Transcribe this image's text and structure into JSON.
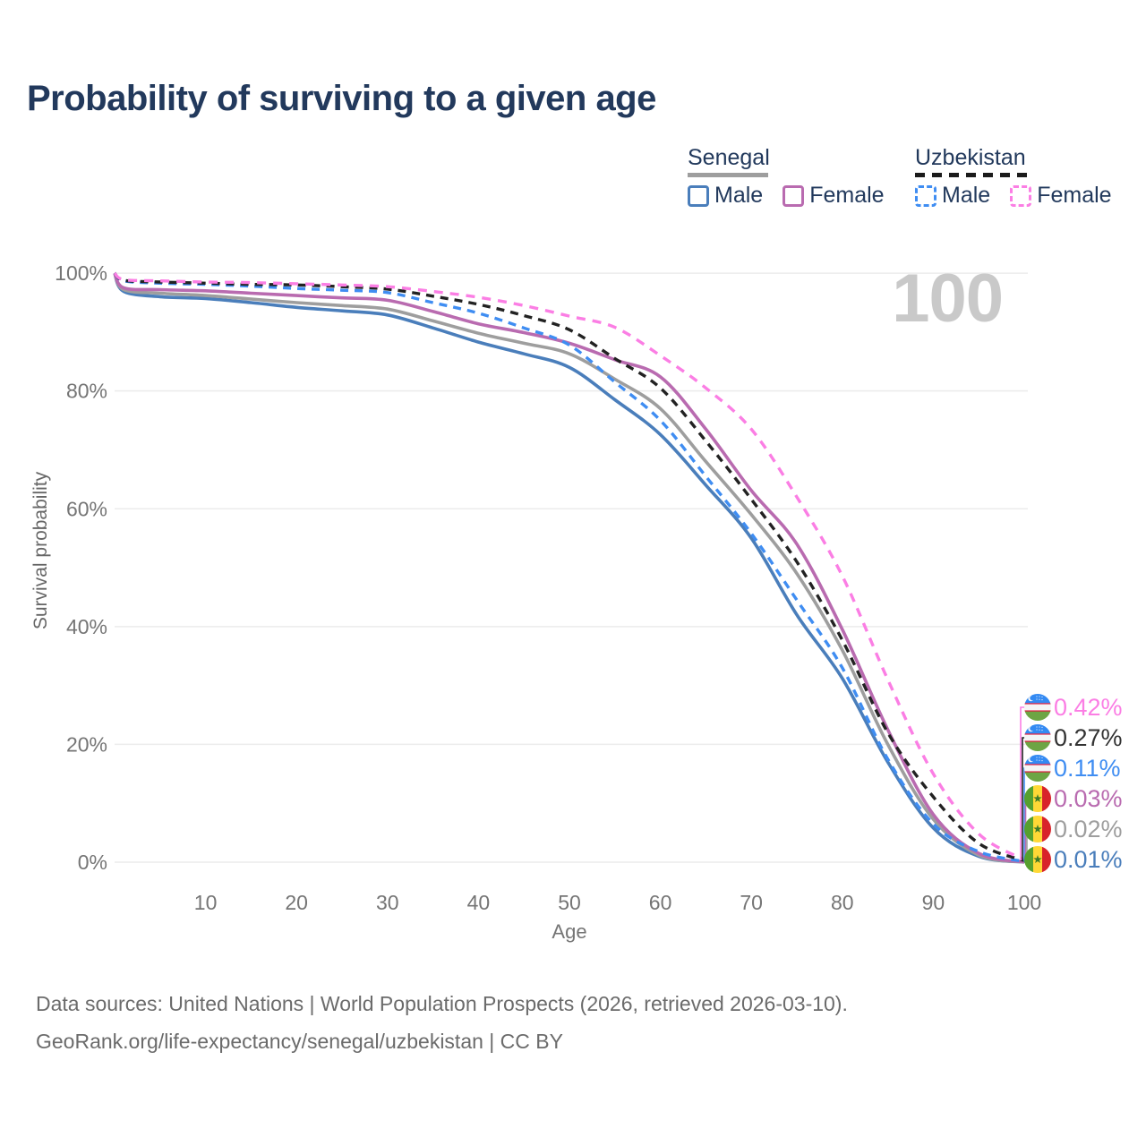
{
  "title": "Probability of surviving to a given age",
  "watermark": "100",
  "legend": {
    "groups": [
      {
        "country": "Senegal",
        "line_style": "solid",
        "line_color": "#9e9e9e",
        "items": [
          {
            "label": "Male",
            "color": "#4a7ebb"
          },
          {
            "label": "Female",
            "color": "#b96bb0"
          }
        ]
      },
      {
        "country": "Uzbekistan",
        "line_style": "dashed",
        "line_color": "#1b1b1b",
        "items": [
          {
            "label": "Male",
            "color": "#3f8df2"
          },
          {
            "label": "Female",
            "color": "#fb7ee4"
          }
        ]
      }
    ]
  },
  "end_labels": [
    {
      "value": "0.42%",
      "series": "uzbekistan-female",
      "color": "#fb7ee4",
      "flag": "uzbekistan-flag"
    },
    {
      "value": "0.27%",
      "series": "uzbekistan-all",
      "color": "#333333",
      "flag": "uzbekistan-flag"
    },
    {
      "value": "0.11%",
      "series": "uzbekistan-male",
      "color": "#3f8df2",
      "flag": "uzbekistan-flag"
    },
    {
      "value": "0.03%",
      "series": "senegal-female",
      "color": "#b96bb0",
      "flag": "senegal-flag"
    },
    {
      "value": "0.02%",
      "series": "senegal-all",
      "color": "#9e9e9e",
      "flag": "senegal-flag"
    },
    {
      "value": "0.01%",
      "series": "senegal-male",
      "color": "#4a7ebb",
      "flag": "senegal-flag"
    }
  ],
  "footer": {
    "line1": "Data sources: United Nations | World Population Prospects (2026, retrieved 2026-03-10).",
    "line2": "GeoRank.org/life-expectancy/senegal/uzbekistan | CC BY"
  },
  "chart_data": {
    "type": "line",
    "x_label": "Age",
    "y_label": "Survival probability",
    "x_range": [
      0,
      100
    ],
    "y_range": [
      0,
      100
    ],
    "grid": "horizontal",
    "x_ticks": [
      {
        "label": "10",
        "value": 10
      },
      {
        "label": "20",
        "value": 20
      },
      {
        "label": "30",
        "value": 30
      },
      {
        "label": "40",
        "value": 40
      },
      {
        "label": "50",
        "value": 50
      },
      {
        "label": "60",
        "value": 60
      },
      {
        "label": "70",
        "value": 70
      },
      {
        "label": "80",
        "value": 80
      },
      {
        "label": "90",
        "value": 90
      },
      {
        "label": "100",
        "value": 100
      }
    ],
    "y_ticks": [
      {
        "label": "0%",
        "value": 0
      },
      {
        "label": "20%",
        "value": 20
      },
      {
        "label": "40%",
        "value": 40
      },
      {
        "label": "60%",
        "value": 60
      },
      {
        "label": "80%",
        "value": 80
      },
      {
        "label": "100%",
        "value": 100
      }
    ],
    "series": [
      {
        "id": "senegal-male",
        "name": "Senegal Male",
        "country": "Senegal",
        "sex": "male",
        "style": "solid",
        "color": "#4a7ebb",
        "dash": null,
        "points": [
          [
            0,
            100
          ],
          [
            1,
            96.9
          ],
          [
            5,
            96.0
          ],
          [
            10,
            95.7
          ],
          [
            15,
            95.0
          ],
          [
            20,
            94.2
          ],
          [
            25,
            93.6
          ],
          [
            30,
            92.9
          ],
          [
            35,
            90.7
          ],
          [
            40,
            88.3
          ],
          [
            45,
            86.3
          ],
          [
            50,
            84.0
          ],
          [
            55,
            78.5
          ],
          [
            60,
            72.6
          ],
          [
            65,
            64.0
          ],
          [
            70,
            55.0
          ],
          [
            75,
            42.0
          ],
          [
            80,
            31.2
          ],
          [
            85,
            17.0
          ],
          [
            90,
            5.8
          ],
          [
            95,
            1.0
          ],
          [
            100,
            0.01
          ]
        ]
      },
      {
        "id": "senegal-all",
        "name": "Senegal Both sexes",
        "country": "Senegal",
        "sex": "all",
        "style": "solid",
        "color": "#9e9e9e",
        "dash": null,
        "points": [
          [
            0,
            100
          ],
          [
            1,
            97.2
          ],
          [
            5,
            96.6
          ],
          [
            10,
            96.2
          ],
          [
            15,
            95.6
          ],
          [
            20,
            95.0
          ],
          [
            25,
            94.5
          ],
          [
            30,
            93.9
          ],
          [
            35,
            91.9
          ],
          [
            40,
            89.8
          ],
          [
            45,
            88.1
          ],
          [
            50,
            86.3
          ],
          [
            55,
            82.0
          ],
          [
            60,
            77.0
          ],
          [
            65,
            68.0
          ],
          [
            70,
            59.0
          ],
          [
            75,
            49.0
          ],
          [
            80,
            36.0
          ],
          [
            85,
            20.0
          ],
          [
            90,
            7.3
          ],
          [
            95,
            1.2
          ],
          [
            100,
            0.02
          ]
        ]
      },
      {
        "id": "senegal-female",
        "name": "Senegal Female",
        "country": "Senegal",
        "sex": "female",
        "style": "solid",
        "color": "#b96bb0",
        "dash": null,
        "points": [
          [
            0,
            100
          ],
          [
            1,
            97.5
          ],
          [
            5,
            97.2
          ],
          [
            10,
            97.0
          ],
          [
            15,
            96.6
          ],
          [
            20,
            96.2
          ],
          [
            25,
            95.8
          ],
          [
            30,
            95.4
          ],
          [
            35,
            93.5
          ],
          [
            40,
            91.4
          ],
          [
            45,
            89.9
          ],
          [
            50,
            88.1
          ],
          [
            55,
            85.3
          ],
          [
            60,
            82.4
          ],
          [
            65,
            73.5
          ],
          [
            70,
            63.1
          ],
          [
            75,
            54.0
          ],
          [
            80,
            39.5
          ],
          [
            85,
            22.5
          ],
          [
            90,
            8.1
          ],
          [
            95,
            1.5
          ],
          [
            100,
            0.03
          ]
        ]
      },
      {
        "id": "uzbekistan-male",
        "name": "Uzbekistan Male",
        "country": "Uzbekistan",
        "sex": "male",
        "style": "dashed",
        "color": "#3f8df2",
        "dash": "9 7",
        "points": [
          [
            0,
            100
          ],
          [
            1,
            98.7
          ],
          [
            5,
            98.3
          ],
          [
            10,
            98.1
          ],
          [
            15,
            97.8
          ],
          [
            20,
            97.4
          ],
          [
            25,
            97.1
          ],
          [
            30,
            96.7
          ],
          [
            35,
            95.0
          ],
          [
            40,
            93.2
          ],
          [
            45,
            90.7
          ],
          [
            50,
            87.8
          ],
          [
            55,
            81.5
          ],
          [
            60,
            75.0
          ],
          [
            65,
            65.5
          ],
          [
            70,
            55.8
          ],
          [
            75,
            44.5
          ],
          [
            80,
            33.0
          ],
          [
            85,
            17.5
          ],
          [
            90,
            6.5
          ],
          [
            95,
            1.8
          ],
          [
            100,
            0.11
          ]
        ]
      },
      {
        "id": "uzbekistan-all",
        "name": "Uzbekistan Both sexes",
        "country": "Uzbekistan",
        "sex": "all",
        "style": "dashed",
        "color": "#222222",
        "dash": "9 7",
        "points": [
          [
            0,
            100
          ],
          [
            1,
            98.8
          ],
          [
            5,
            98.5
          ],
          [
            10,
            98.3
          ],
          [
            15,
            98.1
          ],
          [
            20,
            98.0
          ],
          [
            25,
            97.7
          ],
          [
            30,
            97.3
          ],
          [
            35,
            96.1
          ],
          [
            40,
            94.7
          ],
          [
            45,
            92.8
          ],
          [
            50,
            90.4
          ],
          [
            55,
            85.5
          ],
          [
            60,
            80.5
          ],
          [
            65,
            71.5
          ],
          [
            70,
            61.6
          ],
          [
            75,
            51.0
          ],
          [
            80,
            37.7
          ],
          [
            85,
            22.0
          ],
          [
            90,
            11.1
          ],
          [
            95,
            3.2
          ],
          [
            100,
            0.27
          ]
        ]
      },
      {
        "id": "uzbekistan-female",
        "name": "Uzbekistan Female",
        "country": "Uzbekistan",
        "sex": "female",
        "style": "dashed",
        "color": "#fb7ee4",
        "dash": "10 8",
        "points": [
          [
            0,
            100
          ],
          [
            1,
            98.9
          ],
          [
            5,
            98.7
          ],
          [
            10,
            98.5
          ],
          [
            15,
            98.4
          ],
          [
            20,
            98.2
          ],
          [
            25,
            98.0
          ],
          [
            30,
            97.7
          ],
          [
            35,
            96.9
          ],
          [
            40,
            95.9
          ],
          [
            45,
            94.5
          ],
          [
            50,
            92.7
          ],
          [
            55,
            90.8
          ],
          [
            60,
            86.0
          ],
          [
            65,
            80.5
          ],
          [
            70,
            73.5
          ],
          [
            75,
            62.0
          ],
          [
            80,
            48.6
          ],
          [
            85,
            31.0
          ],
          [
            90,
            15.0
          ],
          [
            95,
            4.8
          ],
          [
            100,
            0.42
          ]
        ]
      }
    ]
  }
}
